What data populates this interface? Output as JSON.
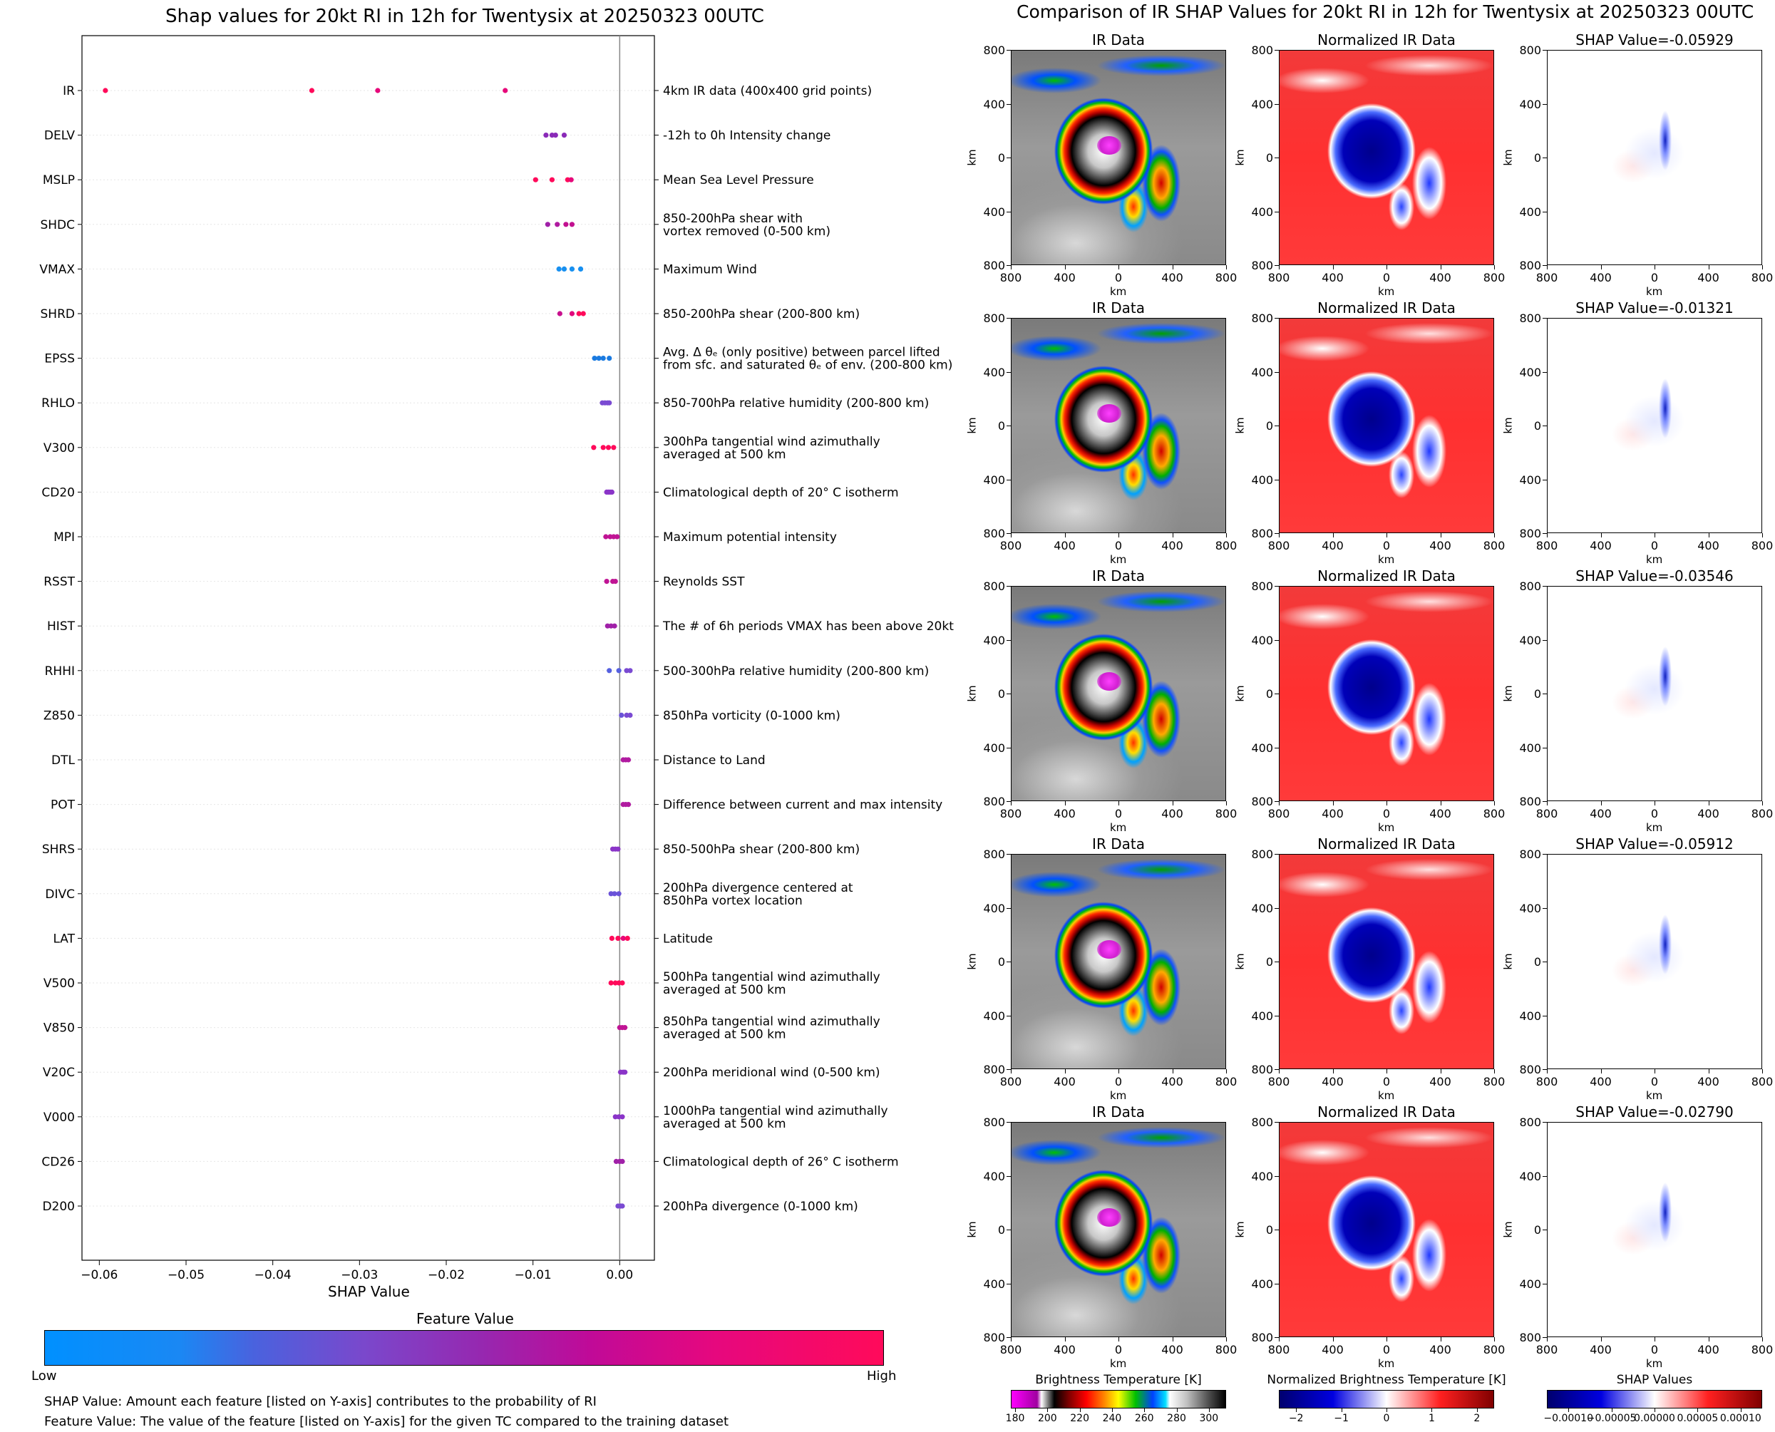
{
  "left": {
    "title": "Shap values for 20kt RI in 12h for Twentysix at 20250323 00UTC",
    "xlabel": "SHAP Value",
    "xticks": [
      "−0.06",
      "−0.05",
      "−0.04",
      "−0.03",
      "−0.02",
      "−0.01",
      "0.00"
    ],
    "colorbar": {
      "title": "Feature Value",
      "low": "Low",
      "high": "High"
    },
    "notes": [
      "SHAP Value: Amount each feature [listed on Y-axis] contributes to the probability of RI",
      "Feature Value: The value of the feature [listed on Y-axis] for the given TC compared to the training dataset"
    ]
  },
  "chart_data": [
    {
      "type": "scatter",
      "title": "Shap values for 20kt RI in 12h for Twentysix at 20250323 00UTC",
      "xlabel": "SHAP Value",
      "xlim": [
        -0.062,
        0.004
      ],
      "grid": false,
      "features": [
        {
          "name": "IR",
          "desc": [
            "4km IR data (400x400 grid points)"
          ],
          "values": [
            -0.0593,
            -0.0355,
            -0.0279,
            -0.0132
          ],
          "colors": [
            "#ff0a5a",
            "#ff0a5a",
            "#e6087a",
            "#e6087a"
          ]
        },
        {
          "name": "DELV",
          "desc": [
            "-12h to 0h Intensity change"
          ],
          "values": [
            -0.0085,
            -0.0078,
            -0.0074,
            -0.0064
          ],
          "colors": [
            "#8a2ab8",
            "#8a2ab8",
            "#8a2ab8",
            "#8a2ab8"
          ]
        },
        {
          "name": "MSLP",
          "desc": [
            "Mean Sea Level Pressure"
          ],
          "values": [
            -0.0097,
            -0.0078,
            -0.006,
            -0.0056
          ],
          "colors": [
            "#ff0a5a",
            "#ff0a5a",
            "#ff0a5a",
            "#e6087a"
          ]
        },
        {
          "name": "SHDC",
          "desc": [
            "850-200hPa shear with",
            "vortex removed (0-500 km)"
          ],
          "values": [
            -0.0083,
            -0.0072,
            -0.0062,
            -0.0055
          ],
          "colors": [
            "#a020a8",
            "#b01aa0",
            "#c21090",
            "#c21090"
          ]
        },
        {
          "name": "VMAX",
          "desc": [
            "Maximum Wind"
          ],
          "values": [
            -0.007,
            -0.0064,
            -0.0055,
            -0.0045
          ],
          "colors": [
            "#1890f0",
            "#1890f0",
            "#1890f0",
            "#1890f0"
          ]
        },
        {
          "name": "SHRD",
          "desc": [
            "850-200hPa shear (200-800 km)"
          ],
          "values": [
            -0.0069,
            -0.0055,
            -0.0047,
            -0.0042
          ],
          "colors": [
            "#c8108e",
            "#e0087c",
            "#ff0a5a",
            "#ff0a5a"
          ]
        },
        {
          "name": "EPSS",
          "desc": [
            "Avg. Δ θₑ (only positive) between parcel lifted",
            "from sfc. and saturated θₑ of env. (200-800 km)"
          ],
          "values": [
            -0.0029,
            -0.0024,
            -0.0019,
            -0.0012
          ],
          "colors": [
            "#1a7ae0",
            "#1a7ae0",
            "#1a7ae0",
            "#1a7ae0"
          ]
        },
        {
          "name": "RHLO",
          "desc": [
            "850-700hPa relative humidity (200-800 km)"
          ],
          "values": [
            -0.002,
            -0.0017,
            -0.0014,
            -0.0012
          ],
          "colors": [
            "#7a4ad2",
            "#7a4ad2",
            "#7a4ad2",
            "#7a4ad2"
          ]
        },
        {
          "name": "V300",
          "desc": [
            "300hPa tangential wind azimuthally",
            "averaged at 500 km"
          ],
          "values": [
            -0.003,
            -0.0019,
            -0.0013,
            -0.0007
          ],
          "colors": [
            "#ff0a5a",
            "#ff0a5a",
            "#ff0a5a",
            "#ff0a5a"
          ]
        },
        {
          "name": "CD20",
          "desc": [
            "Climatological depth of 20° C isotherm"
          ],
          "values": [
            -0.0015,
            -0.0013,
            -0.0011,
            -0.0009
          ],
          "colors": [
            "#8a34c8",
            "#8a34c8",
            "#8a34c8",
            "#8a34c8"
          ]
        },
        {
          "name": "MPI",
          "desc": [
            "Maximum potential intensity"
          ],
          "values": [
            -0.0016,
            -0.0011,
            -0.0007,
            -0.0003
          ],
          "colors": [
            "#c01494",
            "#c01494",
            "#c01494",
            "#c01494"
          ]
        },
        {
          "name": "RSST",
          "desc": [
            "Reynolds SST"
          ],
          "values": [
            -0.0015,
            -0.0008,
            -0.0005
          ],
          "colors": [
            "#c01494",
            "#c01494",
            "#c01494"
          ]
        },
        {
          "name": "HIST",
          "desc": [
            "The # of 6h periods VMAX has been above 20kt"
          ],
          "values": [
            -0.0014,
            -0.001,
            -0.0006
          ],
          "colors": [
            "#a020a8",
            "#a020a8",
            "#a020a8"
          ]
        },
        {
          "name": "RHHI",
          "desc": [
            "500-300hPa relative humidity (200-800 km)"
          ],
          "values": [
            -0.0012,
            -0.0001,
            0.0008,
            0.0012
          ],
          "colors": [
            "#5560e0",
            "#5560e0",
            "#7a4ad2",
            "#7a4ad2"
          ]
        },
        {
          "name": "Z850",
          "desc": [
            "850hPa vorticity (0-1000 km)"
          ],
          "values": [
            0.0002,
            0.0008,
            0.0012
          ],
          "colors": [
            "#6a52d8",
            "#7a4ad2",
            "#7a4ad2"
          ]
        },
        {
          "name": "DTL",
          "desc": [
            "Distance to Land"
          ],
          "values": [
            0.0004,
            0.0007,
            0.001
          ],
          "colors": [
            "#b01aa0",
            "#b01aa0",
            "#b01aa0"
          ]
        },
        {
          "name": "POT",
          "desc": [
            "Difference between current and max intensity"
          ],
          "values": [
            0.0004,
            0.0007,
            0.001
          ],
          "colors": [
            "#b01aa0",
            "#b01aa0",
            "#b01aa0"
          ]
        },
        {
          "name": "SHRS",
          "desc": [
            "850-500hPa shear (200-800 km)"
          ],
          "values": [
            -0.0008,
            -0.0005,
            -0.0002
          ],
          "colors": [
            "#8a34c8",
            "#8a34c8",
            "#8a34c8"
          ]
        },
        {
          "name": "DIVC",
          "desc": [
            "200hPa divergence centered at",
            "850hPa vortex location"
          ],
          "values": [
            -0.001,
            -0.0006,
            -0.0001
          ],
          "colors": [
            "#6a52d8",
            "#6a52d8",
            "#6a52d8"
          ]
        },
        {
          "name": "LAT",
          "desc": [
            "Latitude"
          ],
          "values": [
            -0.0009,
            -0.0002,
            0.0004,
            0.0009
          ],
          "colors": [
            "#ff0a5a",
            "#ff0a5a",
            "#e6087a",
            "#ff0a5a"
          ]
        },
        {
          "name": "V500",
          "desc": [
            "500hPa tangential wind azimuthally",
            "averaged at 500 km"
          ],
          "values": [
            -0.001,
            -0.0005,
            -0.0001,
            0.0003
          ],
          "colors": [
            "#ff0a5a",
            "#ff0a5a",
            "#ff0a5a",
            "#ff0a5a"
          ]
        },
        {
          "name": "V850",
          "desc": [
            "850hPa tangential wind azimuthally",
            "averaged at 500 km"
          ],
          "values": [
            0.0,
            0.0003,
            0.0006
          ],
          "colors": [
            "#c01494",
            "#c01494",
            "#c01494"
          ]
        },
        {
          "name": "V20C",
          "desc": [
            "200hPa meridional wind (0-500 km)"
          ],
          "values": [
            0.0001,
            0.0004,
            0.0006
          ],
          "colors": [
            "#8a34c8",
            "#8a34c8",
            "#8a34c8"
          ]
        },
        {
          "name": "V000",
          "desc": [
            "1000hPa tangential wind azimuthally",
            "averaged at 500 km"
          ],
          "values": [
            -0.0005,
            -0.0001,
            0.0003
          ],
          "colors": [
            "#8a34c8",
            "#8a34c8",
            "#8a34c8"
          ]
        },
        {
          "name": "CD26",
          "desc": [
            "Climatological depth of 26° C isotherm"
          ],
          "values": [
            -0.0004,
            0.0,
            0.0003
          ],
          "colors": [
            "#a020a8",
            "#a020a8",
            "#a020a8"
          ]
        },
        {
          "name": "D200",
          "desc": [
            "200hPa divergence (0-1000 km)"
          ],
          "values": [
            -0.0002,
            0.0001,
            0.0003
          ],
          "colors": [
            "#7a4ad2",
            "#7a4ad2",
            "#7a4ad2"
          ]
        }
      ]
    },
    {
      "type": "heatmap",
      "title": "Comparison of IR SHAP Values for 20kt RI in 12h for Twentysix at 20250323 00UTC",
      "rows": [
        {
          "ir": "IR Data",
          "norm": "Normalized IR Data",
          "shap": "SHAP Value=-0.05929"
        },
        {
          "ir": "IR Data",
          "norm": "Normalized IR Data",
          "shap": "SHAP Value=-0.01321"
        },
        {
          "ir": "IR Data",
          "norm": "Normalized IR Data",
          "shap": "SHAP Value=-0.03546"
        },
        {
          "ir": "IR Data",
          "norm": "Normalized IR Data",
          "shap": "SHAP Value=-0.05912"
        },
        {
          "ir": "IR Data",
          "norm": "Normalized IR Data",
          "shap": "SHAP Value=-0.02790"
        }
      ],
      "axis_label": "km",
      "ticks": [
        "800",
        "400",
        "0",
        "400",
        "800"
      ],
      "colorbars": [
        {
          "title": "Brightness Temperature [K]",
          "ticks": [
            "180",
            "200",
            "220",
            "240",
            "260",
            "280",
            "300"
          ]
        },
        {
          "title": "Normalized Brightness Temperature [K]",
          "ticks": [
            "−2",
            "−1",
            "0",
            "1",
            "2"
          ]
        },
        {
          "title": "SHAP Values",
          "ticks": [
            "−0.00010",
            "−0.00005",
            "0.00000",
            "0.00005",
            "0.00010"
          ]
        }
      ]
    }
  ],
  "right": {
    "title": "Comparison of IR SHAP Values for 20kt RI in 12h for Twentysix at 20250323 00UTC"
  },
  "colors": {
    "low": "#0090ff",
    "mid": "#8a2ec8",
    "high": "#ff0a5a"
  }
}
